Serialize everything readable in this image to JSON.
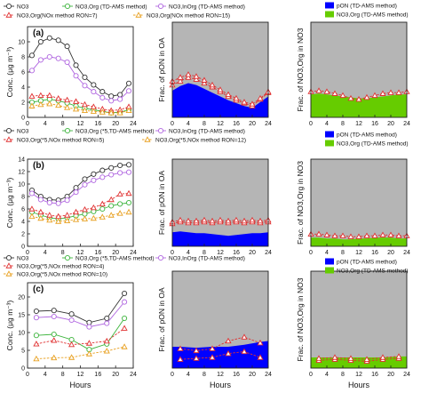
{
  "chart_data": [
    {
      "id": "a-left",
      "type": "line",
      "panel_label": "(a)",
      "ylabel": "Conc. (μg m⁻³)",
      "xlim": [
        0,
        24
      ],
      "ylim": [
        0,
        12
      ],
      "xticks": [
        0,
        4,
        8,
        12,
        16,
        20,
        24
      ],
      "yticks": [
        0,
        2,
        4,
        6,
        8,
        10
      ],
      "x": [
        1,
        3,
        5,
        7,
        9,
        11,
        13,
        15,
        17,
        19,
        21,
        23
      ],
      "series": [
        {
          "name": "NO3",
          "color": "#333333",
          "marker": "circle",
          "dash": false,
          "values": [
            8.2,
            10.0,
            10.5,
            10.2,
            9.4,
            6.9,
            5.3,
            4.3,
            3.4,
            2.8,
            3.0,
            4.5
          ]
        },
        {
          "name": "NO3,Org (TD-AMS method)",
          "color": "#3cb43c",
          "marker": "circle",
          "dash": false,
          "values": [
            2.0,
            2.2,
            2.4,
            2.2,
            1.9,
            1.5,
            1.2,
            1.0,
            0.8,
            0.6,
            0.7,
            1.0
          ]
        },
        {
          "name": "NO3,InOrg (TD-AMS method)",
          "color": "#b066e0",
          "marker": "circle",
          "dash": false,
          "values": [
            6.2,
            7.6,
            8.0,
            7.8,
            7.3,
            5.5,
            4.2,
            3.4,
            2.6,
            2.2,
            2.4,
            3.5
          ]
        },
        {
          "name": "NO3,Org(NOx method RON=7)",
          "color": "#e03030",
          "marker": "triangle",
          "dash": true,
          "values": [
            2.8,
            2.9,
            2.9,
            2.5,
            2.3,
            2.1,
            1.7,
            1.4,
            1.1,
            0.9,
            1.0,
            1.4
          ]
        },
        {
          "name": "NO3,Org(NOx method RON=15)",
          "color": "#e8a020",
          "marker": "triangle",
          "dash": true,
          "values": [
            1.5,
            1.7,
            1.8,
            1.6,
            1.3,
            1.1,
            0.9,
            0.8,
            0.7,
            0.6,
            0.6,
            0.9
          ]
        }
      ]
    },
    {
      "id": "a-mid",
      "type": "area",
      "ylabel": "Frac. of pON in OA",
      "xlim": [
        0,
        24
      ],
      "ylim": [
        0,
        1
      ],
      "xticks": [
        0,
        4,
        8,
        12,
        16,
        20,
        24
      ],
      "x": [
        0,
        2,
        4,
        6,
        8,
        10,
        12,
        14,
        16,
        18,
        20,
        22,
        24
      ],
      "area": {
        "name": "pON (TD-AMS method)",
        "color": "#0000ff",
        "values": [
          0.28,
          0.33,
          0.36,
          0.34,
          0.3,
          0.26,
          0.22,
          0.18,
          0.15,
          0.12,
          0.1,
          0.16,
          0.22
        ]
      },
      "series": [
        {
          "name": "NOx method",
          "color": "#e03030",
          "marker": "triangle",
          "values": [
            0.34,
            0.38,
            0.42,
            0.4,
            0.36,
            0.32,
            0.27,
            0.22,
            0.18,
            0.15,
            0.12,
            0.19,
            0.26
          ]
        },
        {
          "name": "NOx method (upper)",
          "color": "#e03030",
          "marker": "triangle",
          "values": [
            0.38,
            0.42,
            0.45,
            0.43,
            0.39,
            0.34,
            0.29,
            0.24,
            0.2,
            0.16,
            0.14,
            0.2,
            0.27
          ]
        }
      ]
    },
    {
      "id": "a-right",
      "type": "area",
      "ylabel": "Frac. of NO3,Org in NO3",
      "xlim": [
        0,
        24
      ],
      "ylim": [
        0,
        1
      ],
      "xticks": [
        0,
        4,
        8,
        12,
        16,
        20,
        24
      ],
      "x": [
        0,
        2,
        4,
        6,
        8,
        10,
        12,
        14,
        16,
        18,
        20,
        22,
        24
      ],
      "area": {
        "name": "NO3,Org (TD-AMS method)",
        "color": "#66cc00",
        "values": [
          0.24,
          0.25,
          0.24,
          0.23,
          0.22,
          0.21,
          0.2,
          0.2,
          0.21,
          0.22,
          0.23,
          0.24,
          0.24
        ]
      },
      "series": [
        {
          "name": "NOx method",
          "color": "#e03030",
          "marker": "triangle",
          "values": [
            0.27,
            0.28,
            0.27,
            0.25,
            0.23,
            0.2,
            0.19,
            0.21,
            0.23,
            0.25,
            0.26,
            0.26,
            0.27
          ]
        }
      ]
    },
    {
      "id": "b-left",
      "type": "line",
      "panel_label": "(b)",
      "ylabel": "Conc. (μg m⁻³)",
      "xlim": [
        0,
        24
      ],
      "ylim": [
        0,
        14
      ],
      "xticks": [
        0,
        4,
        8,
        12,
        16,
        20,
        24
      ],
      "yticks": [
        0,
        2,
        4,
        6,
        8,
        10,
        12,
        14
      ],
      "x": [
        1,
        3,
        5,
        7,
        9,
        11,
        13,
        15,
        17,
        19,
        21,
        23
      ],
      "series": [
        {
          "name": "NO3",
          "color": "#333333",
          "marker": "circle",
          "dash": false,
          "values": [
            9.0,
            8.0,
            7.5,
            7.4,
            8.0,
            9.4,
            10.8,
            11.6,
            12.2,
            12.6,
            13.0,
            13.1
          ]
        },
        {
          "name": "NO3,Org (*5,TD-AMS method)",
          "color": "#3cb43c",
          "marker": "circle",
          "dash": false,
          "values": [
            5.5,
            5.0,
            4.6,
            4.4,
            4.6,
            4.9,
            5.2,
            5.6,
            6.0,
            6.5,
            6.8,
            7.0
          ]
        },
        {
          "name": "NO3,InOrg (TD-AMS method)",
          "color": "#b066e0",
          "marker": "circle",
          "dash": false,
          "values": [
            8.5,
            7.5,
            7.0,
            6.9,
            7.4,
            8.7,
            9.9,
            10.6,
            11.1,
            11.5,
            11.8,
            11.9
          ]
        },
        {
          "name": "NO3,Org(*5,NOx method RON=5)",
          "color": "#e03030",
          "marker": "triangle",
          "dash": true,
          "values": [
            6.0,
            5.5,
            5.0,
            4.8,
            5.0,
            5.5,
            5.9,
            6.2,
            6.8,
            7.5,
            8.4,
            8.5
          ]
        },
        {
          "name": "NO3,Org(*5,NOx method RON=12)",
          "color": "#e8a020",
          "marker": "triangle",
          "dash": true,
          "values": [
            4.8,
            4.5,
            4.2,
            4.0,
            4.1,
            4.3,
            4.4,
            4.5,
            4.7,
            5.0,
            5.3,
            5.5
          ]
        }
      ]
    },
    {
      "id": "b-mid",
      "type": "area",
      "ylabel": "Frac. of pON in OA",
      "xlim": [
        0,
        24
      ],
      "ylim": [
        0,
        1
      ],
      "xticks": [
        0,
        4,
        8,
        12,
        16,
        20,
        24
      ],
      "x": [
        0,
        2,
        4,
        6,
        8,
        10,
        12,
        14,
        16,
        18,
        20,
        22,
        24
      ],
      "area": {
        "name": "pON (TD-AMS method)",
        "color": "#0000ff",
        "values": [
          0.16,
          0.17,
          0.16,
          0.15,
          0.15,
          0.14,
          0.13,
          0.12,
          0.13,
          0.14,
          0.15,
          0.15,
          0.16
        ]
      },
      "series": [
        {
          "name": "NOx method",
          "color": "#e03030",
          "marker": "triangle",
          "values": [
            0.26,
            0.28,
            0.27,
            0.27,
            0.28,
            0.27,
            0.28,
            0.27,
            0.28,
            0.27,
            0.28,
            0.27,
            0.28
          ]
        },
        {
          "name": "NOx method (upper)",
          "color": "#e03030",
          "marker": "triangle",
          "values": [
            0.28,
            0.3,
            0.29,
            0.29,
            0.3,
            0.29,
            0.3,
            0.29,
            0.3,
            0.29,
            0.3,
            0.29,
            0.3
          ]
        }
      ]
    },
    {
      "id": "b-right",
      "type": "area",
      "ylabel": "Frac. of NO3,Org in NO3",
      "xlim": [
        0,
        24
      ],
      "ylim": [
        0,
        1
      ],
      "xticks": [
        0,
        4,
        8,
        12,
        16,
        20,
        24
      ],
      "x": [
        0,
        2,
        4,
        6,
        8,
        10,
        12,
        14,
        16,
        18,
        20,
        22,
        24
      ],
      "area": {
        "name": "NO3,Org (TD-AMS method)",
        "color": "#66cc00",
        "values": [
          0.1,
          0.1,
          0.09,
          0.09,
          0.08,
          0.08,
          0.09,
          0.09,
          0.1,
          0.1,
          0.1,
          0.09,
          0.09
        ]
      },
      "series": [
        {
          "name": "NOx method",
          "color": "#e03030",
          "marker": "triangle",
          "values": [
            0.14,
            0.14,
            0.13,
            0.12,
            0.12,
            0.11,
            0.11,
            0.12,
            0.12,
            0.13,
            0.13,
            0.12,
            0.12
          ]
        }
      ]
    },
    {
      "id": "c-left",
      "type": "line",
      "panel_label": "(c)",
      "ylabel": "Conc. (μg m⁻³)",
      "xlim": [
        0,
        24
      ],
      "ylim": [
        0,
        24
      ],
      "xticks": [
        0,
        4,
        8,
        12,
        16,
        20,
        24
      ],
      "yticks": [
        0,
        5,
        10,
        15,
        20
      ],
      "x": [
        2,
        6,
        10,
        14,
        18,
        22
      ],
      "series": [
        {
          "name": "NO3",
          "color": "#333333",
          "marker": "circle",
          "dash": false,
          "values": [
            16.0,
            16.2,
            15.2,
            12.8,
            14.0,
            21.0
          ]
        },
        {
          "name": "NO3,Org (*5,TD-AMS method)",
          "color": "#3cb43c",
          "marker": "circle",
          "dash": false,
          "values": [
            9.2,
            9.5,
            8.0,
            5.2,
            6.8,
            14.0
          ]
        },
        {
          "name": "NO3,InOrg (TD-AMS method)",
          "color": "#b066e0",
          "marker": "circle",
          "dash": false,
          "values": [
            14.2,
            14.5,
            13.5,
            11.6,
            12.6,
            18.6
          ]
        },
        {
          "name": "NO3,Org(*5,NOx method RON=4)",
          "color": "#e03030",
          "marker": "triangle",
          "dash": true,
          "values": [
            6.8,
            7.8,
            6.6,
            7.0,
            7.6,
            11.2
          ]
        },
        {
          "name": "NO3,Org(*5,NOx method RON=10)",
          "color": "#e8a020",
          "marker": "triangle",
          "dash": true,
          "values": [
            2.6,
            2.9,
            3.0,
            4.0,
            4.8,
            6.0
          ]
        }
      ]
    },
    {
      "id": "c-mid",
      "type": "area",
      "ylabel": "Frac. of pON in OA",
      "xlim": [
        0,
        24
      ],
      "ylim": [
        0,
        1
      ],
      "xticks": [
        0,
        4,
        8,
        12,
        16,
        20,
        24
      ],
      "x": [
        0,
        2,
        6,
        10,
        14,
        18,
        22,
        24
      ],
      "area": {
        "name": "pON (TD-AMS method)",
        "color": "#0000ff",
        "values": [
          0.22,
          0.22,
          0.21,
          0.22,
          0.22,
          0.24,
          0.27,
          0.28
        ]
      },
      "series": [
        {
          "name": "NOx method",
          "color": "#e03030",
          "marker": "triangle",
          "values": [
            null,
            0.2,
            0.18,
            0.2,
            0.28,
            0.32,
            0.26,
            null
          ]
        },
        {
          "name": "NOx method (lower)",
          "color": "#e03030",
          "marker": "triangle",
          "values": [
            null,
            0.09,
            0.1,
            0.11,
            0.15,
            0.17,
            0.11,
            null
          ]
        }
      ]
    },
    {
      "id": "c-right",
      "type": "area",
      "ylabel": "Frac. of NO3,Org in NO3",
      "xlim": [
        0,
        24
      ],
      "ylim": [
        0,
        1
      ],
      "xticks": [
        0,
        4,
        8,
        12,
        16,
        20,
        24
      ],
      "x": [
        0,
        2,
        6,
        10,
        14,
        18,
        22,
        24
      ],
      "area": {
        "name": "NO3,Org (TD-AMS method)",
        "color": "#66cc00",
        "values": [
          0.11,
          0.11,
          0.11,
          0.11,
          0.11,
          0.11,
          0.12,
          0.12
        ]
      },
      "series": [
        {
          "name": "NOx method",
          "color": "#e03030",
          "marker": "triangle",
          "values": [
            null,
            0.08,
            0.09,
            0.08,
            0.07,
            0.09,
            0.1,
            null
          ]
        },
        {
          "name": "NOx method (upper)",
          "color": "#e03030",
          "marker": "triangle",
          "values": [
            null,
            0.1,
            0.11,
            0.1,
            0.09,
            0.11,
            0.12,
            null
          ]
        }
      ]
    }
  ],
  "legends": {
    "a_left": [
      "NO3",
      "NO3,Org (TD-AMS method)",
      "NO3,InOrg (TD-AMS method)",
      "NO3,Org(NOx method RON=7)",
      "NO3,Org(NOx method RON=15)"
    ],
    "a_right": [
      "pON (TD-AMS method)",
      "NO3,Org (TD-AMS method)"
    ],
    "b_left": [
      "NO3",
      "NO3,Org (*5,TD-AMS method)",
      "NO3,InOrg (TD-AMS method)",
      "NO3,Org(*5,NOx method RON=5)",
      "NO3,Org(*5,NOx method RON=12)"
    ],
    "b_right": [
      "pON (TD-AMS method)",
      "NO3,Org (TD-AMS method)"
    ],
    "c_left": [
      "NO3",
      "NO3,Org (*5,TD-AMS method)",
      "NO3,InOrg (TD-AMS method)",
      "NO3,Org(*5,NOx method RON=4)",
      "NO3,Org(*5,NOx method RON=10)"
    ],
    "c_right": [
      "pON (TD-AMS method)",
      "NO3,Org (TD-AMS method)"
    ]
  },
  "xlabel": "Hours",
  "background_color": "#b5b5b5"
}
